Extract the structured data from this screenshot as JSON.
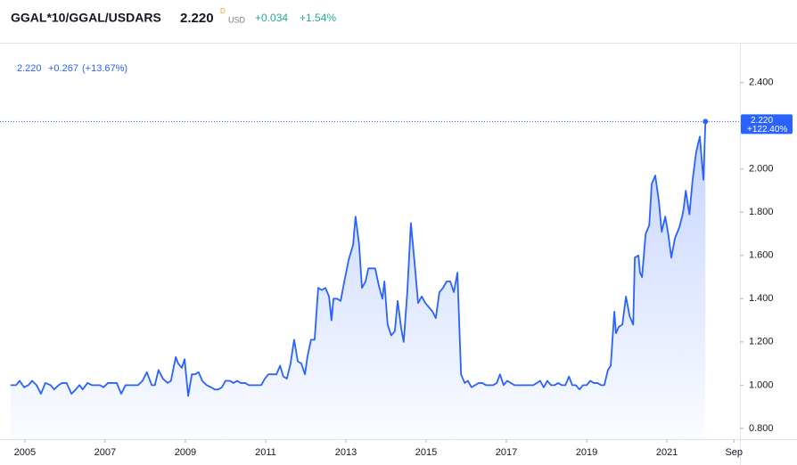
{
  "header": {
    "symbol": "GGAL*10/GGAL/USDARS",
    "price": "2.220",
    "price_flag": "D",
    "currency": "USD",
    "change": "+0.034",
    "change_percent": "+1.54%"
  },
  "chart_data": {
    "type": "area",
    "legend": {
      "value": "2.220",
      "change": "+0.267",
      "change_percent": "(+13.67%)"
    },
    "price_label": {
      "value": "2.220",
      "change": "+122.40%"
    },
    "x": [
      2004.64,
      2004.78,
      2004.87,
      2004.98,
      2005.09,
      2005.18,
      2005.29,
      2005.4,
      2005.51,
      2005.64,
      2005.73,
      2005.84,
      2005.93,
      2006.04,
      2006.16,
      2006.27,
      2006.36,
      2006.44,
      2006.56,
      2006.67,
      2006.76,
      2006.87,
      2006.96,
      2007.07,
      2007.18,
      2007.29,
      2007.4,
      2007.51,
      2007.62,
      2007.71,
      2007.82,
      2007.93,
      2008.04,
      2008.16,
      2008.24,
      2008.33,
      2008.44,
      2008.56,
      2008.64,
      2008.76,
      2008.82,
      2008.91,
      2008.98,
      2009.07,
      2009.16,
      2009.24,
      2009.33,
      2009.42,
      2009.53,
      2009.64,
      2009.73,
      2009.82,
      2009.91,
      2010.0,
      2010.11,
      2010.2,
      2010.29,
      2010.38,
      2010.49,
      2010.58,
      2010.69,
      2010.8,
      2010.89,
      2010.98,
      2011.07,
      2011.18,
      2011.27,
      2011.36,
      2011.44,
      2011.53,
      2011.62,
      2011.71,
      2011.8,
      2011.89,
      2011.98,
      2012.04,
      2012.13,
      2012.22,
      2012.31,
      2012.4,
      2012.49,
      2012.58,
      2012.64,
      2012.69,
      2012.78,
      2012.87,
      2012.96,
      2013.07,
      2013.18,
      2013.24,
      2013.33,
      2013.4,
      2013.49,
      2013.56,
      2013.64,
      2013.73,
      2013.82,
      2013.91,
      2013.96,
      2014.04,
      2014.13,
      2014.22,
      2014.29,
      2014.38,
      2014.44,
      2014.53,
      2014.62,
      2014.71,
      2014.8,
      2014.89,
      2014.98,
      2015.07,
      2015.16,
      2015.24,
      2015.33,
      2015.42,
      2015.51,
      2015.6,
      2015.69,
      2015.78,
      2015.87,
      2015.96,
      2016.04,
      2016.13,
      2016.22,
      2016.31,
      2016.4,
      2016.49,
      2016.58,
      2016.67,
      2016.76,
      2016.84,
      2016.93,
      2017.02,
      2017.11,
      2017.2,
      2017.29,
      2017.38,
      2017.49,
      2017.58,
      2017.67,
      2017.76,
      2017.84,
      2017.93,
      2018.02,
      2018.11,
      2018.2,
      2018.29,
      2018.38,
      2018.47,
      2018.56,
      2018.64,
      2018.73,
      2018.82,
      2018.91,
      2019.0,
      2019.09,
      2019.18,
      2019.27,
      2019.36,
      2019.44,
      2019.53,
      2019.6,
      2019.69,
      2019.73,
      2019.8,
      2019.89,
      2019.98,
      2020.07,
      2020.16,
      2020.2,
      2020.29,
      2020.33,
      2020.38,
      2020.47,
      2020.56,
      2020.62,
      2020.71,
      2020.8,
      2020.87,
      2020.96,
      2021.04,
      2021.11,
      2021.2,
      2021.31,
      2021.38,
      2021.42,
      2021.47,
      2021.56,
      2021.64,
      2021.73,
      2021.82,
      2021.91,
      2021.96
    ],
    "series": [
      {
        "color": "#2962ff",
        "values": [
          1.0,
          1.0,
          1.02,
          0.99,
          1.0,
          1.02,
          1.0,
          0.96,
          1.01,
          1.0,
          0.98,
          1.0,
          1.01,
          1.01,
          0.96,
          0.98,
          1.0,
          0.98,
          1.01,
          1.0,
          1.0,
          1.0,
          0.99,
          1.01,
          1.01,
          1.01,
          0.96,
          1.0,
          1.0,
          1.0,
          1.0,
          1.02,
          1.06,
          1.0,
          1.0,
          1.07,
          1.03,
          1.01,
          1.02,
          1.13,
          1.1,
          1.08,
          1.12,
          0.95,
          1.05,
          1.05,
          1.06,
          1.02,
          1.0,
          0.99,
          0.98,
          0.98,
          0.99,
          1.02,
          1.02,
          1.01,
          1.02,
          1.01,
          1.01,
          1.0,
          1.0,
          1.0,
          1.0,
          1.03,
          1.05,
          1.05,
          1.05,
          1.09,
          1.04,
          1.03,
          1.1,
          1.21,
          1.11,
          1.1,
          1.05,
          1.13,
          1.21,
          1.21,
          1.45,
          1.44,
          1.45,
          1.41,
          1.3,
          1.4,
          1.4,
          1.39,
          1.48,
          1.58,
          1.65,
          1.78,
          1.65,
          1.45,
          1.48,
          1.54,
          1.54,
          1.54,
          1.46,
          1.4,
          1.48,
          1.28,
          1.23,
          1.25,
          1.39,
          1.26,
          1.2,
          1.43,
          1.75,
          1.57,
          1.38,
          1.41,
          1.38,
          1.36,
          1.34,
          1.31,
          1.43,
          1.45,
          1.48,
          1.48,
          1.43,
          1.52,
          1.05,
          1.01,
          1.02,
          0.99,
          1.0,
          1.01,
          1.01,
          1.0,
          1.0,
          1.0,
          1.01,
          1.05,
          1.0,
          1.02,
          1.01,
          1.0,
          1.0,
          1.0,
          1.0,
          1.0,
          1.0,
          1.01,
          1.02,
          0.99,
          1.02,
          1.0,
          1.0,
          1.01,
          1.0,
          1.0,
          1.04,
          1.0,
          1.0,
          0.98,
          1.0,
          1.0,
          1.02,
          1.01,
          1.01,
          1.0,
          1.0,
          1.07,
          1.09,
          1.34,
          1.24,
          1.27,
          1.28,
          1.41,
          1.32,
          1.28,
          1.59,
          1.6,
          1.52,
          1.5,
          1.7,
          1.74,
          1.93,
          1.97,
          1.85,
          1.71,
          1.78,
          1.69,
          1.59,
          1.68,
          1.73,
          1.78,
          1.82,
          1.9,
          1.79,
          1.95,
          2.08,
          2.15,
          1.95,
          2.22
        ]
      }
    ],
    "xlim": [
      2004.38,
      2022.82
    ],
    "ylim": [
      0.75,
      2.58
    ],
    "xticks": [
      2005,
      2007,
      2009,
      2011,
      2013,
      2015,
      2017,
      2019,
      2021,
      {
        "value": 2022.67,
        "label": "Sep"
      }
    ],
    "yticks": [
      {
        "value": 0.8,
        "label": "0.800"
      },
      {
        "value": 1.0,
        "label": "1.000"
      },
      {
        "value": 1.2,
        "label": "1.200"
      },
      {
        "value": 1.4,
        "label": "1.400"
      },
      {
        "value": 1.6,
        "label": "1.600"
      },
      {
        "value": 1.8,
        "label": "1.800"
      },
      {
        "value": 2.0,
        "label": "2.000"
      },
      {
        "value": 2.2,
        "label": "2.200"
      },
      {
        "value": 2.4,
        "label": "2.400"
      }
    ],
    "y_axis_side": "right"
  }
}
